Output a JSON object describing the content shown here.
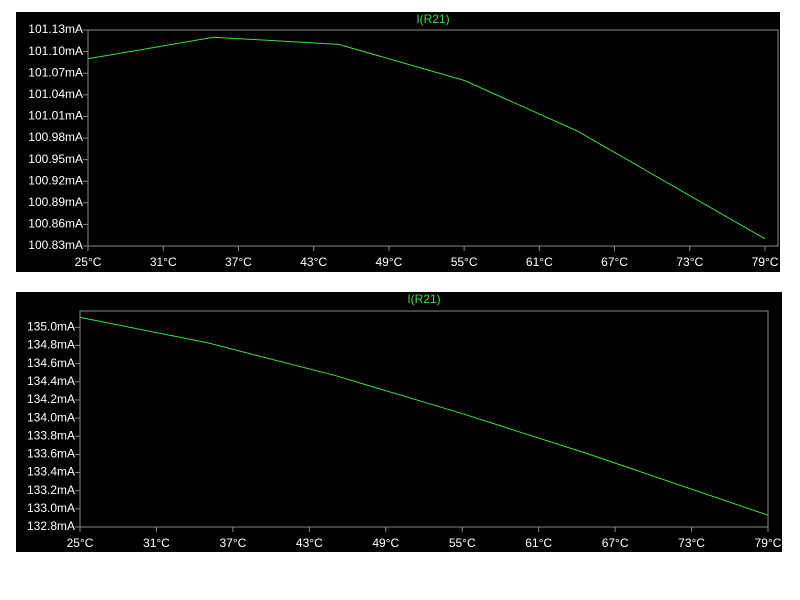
{
  "chart_data": [
    {
      "type": "line",
      "title": "I(R21)",
      "color": "#3ce03c",
      "x": [
        25,
        35,
        45,
        55,
        64,
        79
      ],
      "values": [
        101.09,
        101.12,
        101.11,
        101.06,
        100.99,
        100.84
      ],
      "xlim": [
        25,
        79
      ],
      "ylim": [
        100.83,
        101.13
      ],
      "xticks": [
        {
          "value": 25,
          "label": "25°C"
        },
        {
          "value": 31,
          "label": "31°C"
        },
        {
          "value": 37,
          "label": "37°C"
        },
        {
          "value": 43,
          "label": "43°C"
        },
        {
          "value": 49,
          "label": "49°C"
        },
        {
          "value": 55,
          "label": "55°C"
        },
        {
          "value": 61,
          "label": "61°C"
        },
        {
          "value": 67,
          "label": "67°C"
        },
        {
          "value": 73,
          "label": "73°C"
        },
        {
          "value": 79,
          "label": "79°C"
        }
      ],
      "yticks": [
        {
          "value": 100.83,
          "label": "100.83mA"
        },
        {
          "value": 100.86,
          "label": "100.86mA"
        },
        {
          "value": 100.89,
          "label": "100.89mA"
        },
        {
          "value": 100.92,
          "label": "100.92mA"
        },
        {
          "value": 100.95,
          "label": "100.95mA"
        },
        {
          "value": 100.98,
          "label": "100.98mA"
        },
        {
          "value": 101.01,
          "label": "101.01mA"
        },
        {
          "value": 101.04,
          "label": "101.04mA"
        },
        {
          "value": 101.07,
          "label": "101.07mA"
        },
        {
          "value": 101.1,
          "label": "101.10mA"
        },
        {
          "value": 101.13,
          "label": "101.13mA"
        }
      ]
    },
    {
      "type": "line",
      "title": "I(R21)",
      "color": "#3ce03c",
      "x": [
        25,
        35,
        45,
        55,
        65,
        79
      ],
      "values": [
        135.11,
        134.83,
        134.47,
        134.05,
        133.6,
        132.93
      ],
      "xlim": [
        25,
        79
      ],
      "ylim": [
        132.8,
        135.18
      ],
      "xticks": [
        {
          "value": 25,
          "label": "25°C"
        },
        {
          "value": 31,
          "label": "31°C"
        },
        {
          "value": 37,
          "label": "37°C"
        },
        {
          "value": 43,
          "label": "43°C"
        },
        {
          "value": 49,
          "label": "49°C"
        },
        {
          "value": 55,
          "label": "55°C"
        },
        {
          "value": 61,
          "label": "61°C"
        },
        {
          "value": 67,
          "label": "67°C"
        },
        {
          "value": 73,
          "label": "73°C"
        },
        {
          "value": 79,
          "label": "79°C"
        }
      ],
      "yticks": [
        {
          "value": 132.8,
          "label": "132.8mA"
        },
        {
          "value": 133.0,
          "label": "133.0mA"
        },
        {
          "value": 133.2,
          "label": "133.2mA"
        },
        {
          "value": 133.4,
          "label": "133.4mA"
        },
        {
          "value": 133.6,
          "label": "133.6mA"
        },
        {
          "value": 133.8,
          "label": "133.8mA"
        },
        {
          "value": 134.0,
          "label": "134.0mA"
        },
        {
          "value": 134.2,
          "label": "134.2mA"
        },
        {
          "value": 134.4,
          "label": "134.4mA"
        },
        {
          "value": 134.6,
          "label": "134.6mA"
        },
        {
          "value": 134.8,
          "label": "134.8mA"
        },
        {
          "value": 135.0,
          "label": "135.0mA"
        }
      ]
    }
  ]
}
